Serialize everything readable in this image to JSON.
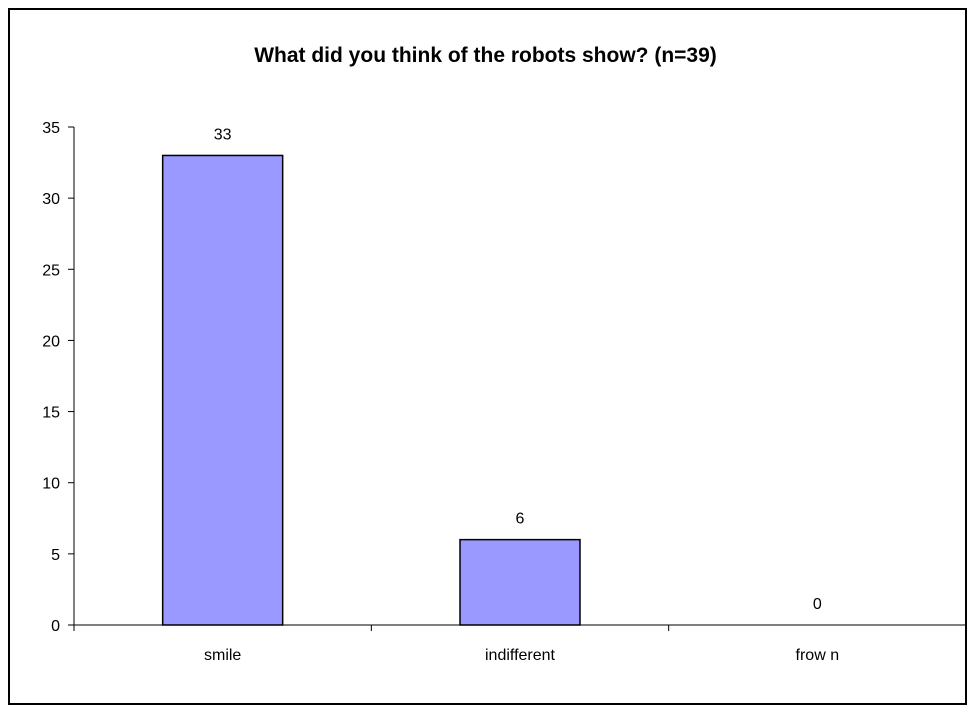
{
  "chart_data": {
    "type": "bar",
    "title": "What did you think of the robots show? (n=39)",
    "categories": [
      "smile",
      "indifferent",
      "frow n"
    ],
    "values": [
      33,
      6,
      0
    ],
    "data_labels": [
      "33",
      "6",
      "0"
    ],
    "ylim": [
      0,
      35
    ],
    "yticks": [
      "0",
      "5",
      "10",
      "15",
      "20",
      "25",
      "30",
      "35"
    ],
    "ytick_values": [
      0,
      5,
      10,
      15,
      20,
      25,
      30,
      35
    ],
    "grid": false,
    "legend": "none",
    "colors": {
      "bar_fill": "#9999ff",
      "bar_stroke": "#000000",
      "axis": "#000000",
      "background": "#ffffff"
    }
  }
}
